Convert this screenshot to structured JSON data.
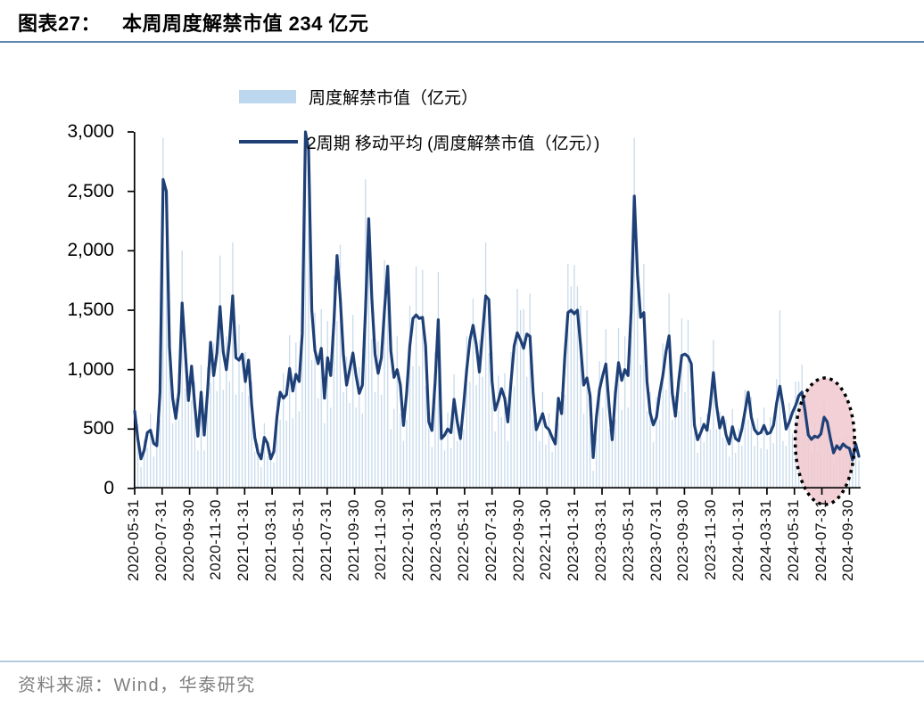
{
  "header": {
    "figure_label": "图表27：",
    "figure_title": "本周周度解禁市值 234 亿元"
  },
  "legend": {
    "items": [
      {
        "label": "周度解禁市值（亿元）",
        "swatch": "bar",
        "color": "#BDD7EE"
      },
      {
        "label": "2周期 移动平均 (周度解禁市值（亿元）)",
        "swatch": "line",
        "color": "#1E4077"
      }
    ]
  },
  "footer": {
    "source": "资料来源：Wind，华泰研究"
  },
  "colors": {
    "bar": "#C7DAEC",
    "bar_legend": "#BDD7EE",
    "line": "#1E4077",
    "axis": "#000000",
    "title_rule": "#5E88AE",
    "footer_rule": "#B3CCE0",
    "footer_text": "#7F7F7F",
    "highlight_fill": "#F0C9CF",
    "highlight_border": "#000000"
  },
  "chart_data": {
    "type": "combo",
    "title": "本周周度解禁市值 234 亿元",
    "xlabel": "",
    "ylabel": "",
    "ylim": [
      0,
      3000
    ],
    "yticks": [
      0,
      500,
      1000,
      1500,
      2000,
      2500,
      3000
    ],
    "ytick_labels": [
      "0",
      "500",
      "1,000",
      "1,500",
      "2,000",
      "2,500",
      "3,000"
    ],
    "grid": false,
    "legend_position": "top-left-inside",
    "x_frequency": "weekly",
    "x_tick_labels": [
      "2020-05-31",
      "2020-07-31",
      "2020-09-30",
      "2020-11-30",
      "2021-01-31",
      "2021-03-31",
      "2021-05-31",
      "2021-07-31",
      "2021-09-30",
      "2021-11-30",
      "2022-01-31",
      "2022-03-31",
      "2022-05-31",
      "2022-07-31",
      "2022-09-30",
      "2022-11-30",
      "2023-01-31",
      "2023-03-31",
      "2023-05-31",
      "2023-07-31",
      "2023-09-30",
      "2023-11-30",
      "2024-01-31",
      "2024-03-31",
      "2024-05-31",
      "2024-07-31",
      "2024-09-30"
    ],
    "highlight": {
      "week_start": 210,
      "week_end": 226.5,
      "fill": "#F0C9CF",
      "border": "dotted-black",
      "note": "recent weeks circled"
    },
    "series": [
      {
        "name": "周度解禁市值（亿元）",
        "type": "bar",
        "color": "#C7DAEC",
        "values": [
          470,
          540,
          180,
          410,
          340,
          630,
          270,
          460,
          580,
          2950,
          2150,
          1520,
          550,
          760,
          580,
          2000,
          840,
          950,
          740,
          900,
          320,
          1040,
          320,
          1020,
          890,
          1220,
          820,
          1960,
          830,
          1280,
          900,
          2070,
          790,
          1380,
          810,
          1150,
          780,
          900,
          310,
          380,
          180,
          550,
          270,
          320,
          220,
          780,
          580,
          970,
          570,
          1290,
          590,
          1230,
          650,
          1660,
          3000,
          2800,
          1080,
          1480,
          760,
          1510,
          550,
          1410,
          680,
          1790,
          1410,
          2050,
          810,
          1110,
          720,
          1460,
          680,
          1020,
          630,
          2600,
          1940,
          1260,
          810,
          1240,
          790,
          1920,
          1820,
          500,
          670,
          1280,
          630,
          400,
          580,
          1540,
          1030,
          1870,
          1030,
          1840,
          860,
          720,
          350,
          1150,
          1820,
          540,
          320,
          640,
          340,
          960,
          400,
          540,
          500,
          1280,
          900,
          1600,
          870,
          1250,
          940,
          2070,
          1140,
          1150,
          480,
          950,
          600,
          970,
          400,
          1150,
          860,
          1680,
          1500,
          1510,
          940,
          1640,
          580,
          630,
          400,
          810,
          370,
          630,
          310,
          480,
          550,
          810,
          790,
          1890,
          1700,
          1880,
          1700,
          1540,
          630,
          1500,
          560,
          150,
          430,
          1070,
          680,
          1340,
          500,
          530,
          580,
          1350,
          660,
          1280,
          680,
          1920,
          2950,
          1970,
          1040,
          1890,
          650,
          810,
          390,
          770,
          580,
          1220,
          830,
          1640,
          580,
          780,
          650,
          1430,
          810,
          1420,
          760,
          680,
          300,
          600,
          390,
          630,
          500,
          1250,
          500,
          650,
          430,
          580,
          270,
          670,
          300,
          510,
          360,
          830,
          580,
          770,
          360,
          590,
          340,
          680,
          330,
          600,
          380,
          920,
          1500,
          400,
          360,
          720,
          460,
          900,
          900,
          1040,
          470,
          580,
          300,
          560,
          310,
          590,
          760,
          440,
          300,
          200,
          260,
          420,
          270,
          450,
          240,
          310,
          270,
          234
        ]
      },
      {
        "name": "2周期 移动平均 (周度解禁市值（亿元）)",
        "type": "line",
        "color": "#1E4077",
        "values": [
          650,
          420,
          250,
          320,
          470,
          490,
          380,
          360,
          810,
          2600,
          2500,
          1190,
          760,
          590,
          810,
          1560,
          1160,
          740,
          1030,
          700,
          440,
          810,
          450,
          800,
          1230,
          950,
          1140,
          1530,
          1150,
          1000,
          1250,
          1620,
          1100,
          1080,
          1130,
          900,
          1080,
          700,
          430,
          300,
          250,
          430,
          380,
          250,
          310,
          610,
          810,
          760,
          790,
          1010,
          820,
          960,
          900,
          1300,
          3000,
          2850,
          1500,
          1160,
          1050,
          1180,
          760,
          1100,
          950,
          1400,
          1960,
          1600,
          1130,
          870,
          1000,
          1140,
          950,
          800,
          870,
          1500,
          2270,
          1600,
          1130,
          970,
          1100,
          1500,
          1870,
          1160,
          935,
          1000,
          870,
          530,
          800,
          1200,
          1430,
          1460,
          1430,
          1440,
          1200,
          560,
          488,
          900,
          1420,
          420,
          450,
          500,
          470,
          750,
          560,
          420,
          700,
          1000,
          1250,
          1373,
          1210,
          980,
          1300,
          1620,
          1590,
          900,
          660,
          740,
          840,
          760,
          560,
          900,
          1200,
          1310,
          1250,
          1180,
          1300,
          1280,
          800,
          495,
          560,
          630,
          520,
          495,
          430,
          375,
          760,
          630,
          1100,
          1480,
          1500,
          1470,
          1500,
          1200,
          870,
          930,
          780,
          260,
          600,
          833,
          950,
          1048,
          700,
          410,
          800,
          1058,
          910,
          1000,
          950,
          1500,
          2460,
          1800,
          1440,
          1480,
          900,
          635,
          535,
          600,
          800,
          950,
          1150,
          1285,
          800,
          608,
          900,
          1120,
          1130,
          1110,
          1050,
          533,
          410,
          470,
          540,
          490,
          700,
          975,
          700,
          510,
          600,
          450,
          375,
          520,
          420,
          400,
          500,
          650,
          810,
          600,
          495,
          460,
          470,
          530,
          460,
          470,
          533,
          720,
          860,
          700,
          500,
          560,
          640,
          700,
          780,
          810,
          650,
          450,
          413,
          440,
          430,
          460,
          600,
          560,
          420,
          300,
          360,
          330,
          375,
          350,
          338,
          240,
          375,
          270
        ]
      }
    ]
  }
}
